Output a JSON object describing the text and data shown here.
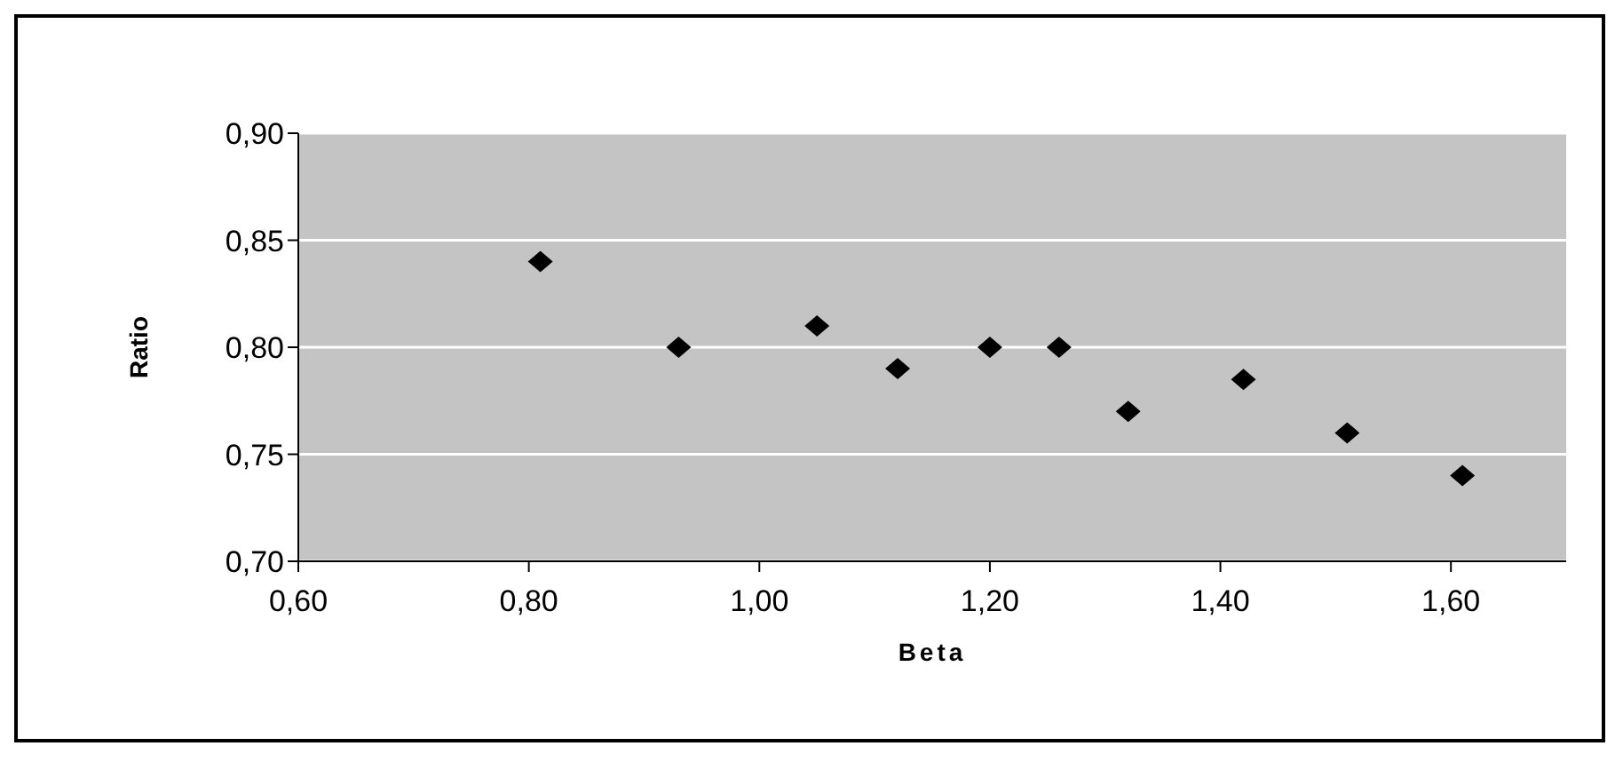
{
  "chart_data": {
    "type": "scatter",
    "xlabel": "Beta",
    "ylabel": "Ratio",
    "x": [
      0.81,
      0.93,
      1.05,
      1.12,
      1.2,
      1.26,
      1.32,
      1.42,
      1.51,
      1.61
    ],
    "series": [
      {
        "color": "#000000",
        "values": [
          0.84,
          0.8,
          0.81,
          0.79,
          0.8,
          0.8,
          0.77,
          0.785,
          0.76,
          0.74
        ]
      }
    ],
    "xlim": [
      0.6,
      1.7
    ],
    "xticks": [
      {
        "value": 0.6,
        "label": "0,60"
      },
      {
        "value": 0.8,
        "label": "0,80"
      },
      {
        "value": 1.0,
        "label": "1,00"
      },
      {
        "value": 1.2,
        "label": "1,20"
      },
      {
        "value": 1.4,
        "label": "1,40"
      },
      {
        "value": 1.6,
        "label": "1,60"
      }
    ],
    "ylim": [
      0.7,
      0.9
    ],
    "yticks": [
      {
        "value": 0.7,
        "label": "0,70"
      },
      {
        "value": 0.75,
        "label": "0,75"
      },
      {
        "value": 0.8,
        "label": "0,80"
      },
      {
        "value": 0.85,
        "label": "0,85"
      },
      {
        "value": 0.9,
        "label": "0,90"
      }
    ],
    "grid": "y",
    "marker": "diamond",
    "legend": false
  }
}
